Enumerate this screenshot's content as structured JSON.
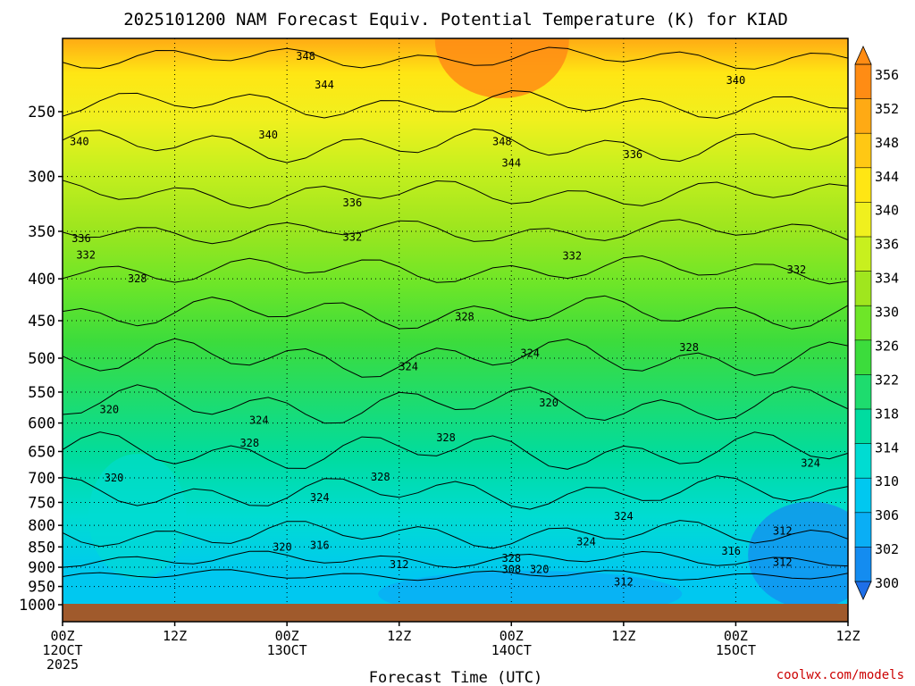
{
  "chart_data": {
    "type": "heatmap",
    "title": "2025101200 NAM Forecast Equiv. Potential Temperature (K) for KIAD",
    "xlabel": "Forecast Time (UTC)",
    "ylabel": "",
    "y_scale": "log-pressure",
    "ylim": [
      1000,
      200
    ],
    "yticks": [
      250,
      300,
      350,
      400,
      450,
      500,
      550,
      600,
      650,
      700,
      750,
      800,
      850,
      900,
      950,
      1000
    ],
    "xticks": [
      {
        "hour": 0,
        "line1": "00Z",
        "line2": "12OCT",
        "line3": "2025"
      },
      {
        "hour": 12,
        "line1": "12Z",
        "line2": "",
        "line3": ""
      },
      {
        "hour": 24,
        "line1": "00Z",
        "line2": "13OCT",
        "line3": ""
      },
      {
        "hour": 36,
        "line1": "12Z",
        "line2": "",
        "line3": ""
      },
      {
        "hour": 48,
        "line1": "00Z",
        "line2": "14OCT",
        "line3": ""
      },
      {
        "hour": 60,
        "line1": "12Z",
        "line2": "",
        "line3": ""
      },
      {
        "hour": 72,
        "line1": "00Z",
        "line2": "15OCT",
        "line3": ""
      },
      {
        "hour": 84,
        "line1": "12Z",
        "line2": "",
        "line3": ""
      }
    ],
    "xlim": [
      0,
      84
    ],
    "colorbar": {
      "labels": [
        300,
        302,
        306,
        310,
        314,
        318,
        322,
        326,
        330,
        334,
        336,
        340,
        344,
        348,
        352,
        356
      ],
      "colors": [
        "#1e6fe8",
        "#148cf0",
        "#0aaef5",
        "#00c8f0",
        "#00dcd2",
        "#00dca0",
        "#1edc6e",
        "#3cdc3c",
        "#6ee628",
        "#a0e61e",
        "#c8f01e",
        "#f0f01e",
        "#ffe614",
        "#ffc814",
        "#ffaa14",
        "#ff8c14"
      ],
      "extend": "both"
    },
    "contour_labels": [
      {
        "t": 1.8,
        "p": 272,
        "v": "340"
      },
      {
        "t": 26.0,
        "p": 214,
        "v": "348"
      },
      {
        "t": 28.0,
        "p": 232,
        "v": "344"
      },
      {
        "t": 22.0,
        "p": 267,
        "v": "340"
      },
      {
        "t": 47.0,
        "p": 272,
        "v": "348"
      },
      {
        "t": 48.0,
        "p": 289,
        "v": "344"
      },
      {
        "t": 72.0,
        "p": 229,
        "v": "340"
      },
      {
        "t": 61.0,
        "p": 282,
        "v": "336"
      },
      {
        "t": 31.0,
        "p": 323,
        "v": "336"
      },
      {
        "t": 31.0,
        "p": 356,
        "v": "332"
      },
      {
        "t": 2.0,
        "p": 357,
        "v": "336"
      },
      {
        "t": 2.5,
        "p": 374,
        "v": "332"
      },
      {
        "t": 8.0,
        "p": 400,
        "v": "328"
      },
      {
        "t": 54.5,
        "p": 375,
        "v": "332"
      },
      {
        "t": 78.5,
        "p": 390,
        "v": "332"
      },
      {
        "t": 43.0,
        "p": 445,
        "v": "328"
      },
      {
        "t": 67.0,
        "p": 485,
        "v": "328"
      },
      {
        "t": 37.0,
        "p": 512,
        "v": "324"
      },
      {
        "t": 50.0,
        "p": 493,
        "v": "324"
      },
      {
        "t": 5.0,
        "p": 578,
        "v": "320"
      },
      {
        "t": 52.0,
        "p": 567,
        "v": "320"
      },
      {
        "t": 21.0,
        "p": 595,
        "v": "324"
      },
      {
        "t": 20.0,
        "p": 635,
        "v": "328"
      },
      {
        "t": 41.0,
        "p": 625,
        "v": "328"
      },
      {
        "t": 34.0,
        "p": 698,
        "v": "328"
      },
      {
        "t": 5.5,
        "p": 700,
        "v": "320"
      },
      {
        "t": 27.5,
        "p": 740,
        "v": "324"
      },
      {
        "t": 60.0,
        "p": 780,
        "v": "324"
      },
      {
        "t": 56.0,
        "p": 838,
        "v": "324"
      },
      {
        "t": 80.0,
        "p": 672,
        "v": "324"
      },
      {
        "t": 23.5,
        "p": 850,
        "v": "320"
      },
      {
        "t": 27.5,
        "p": 846,
        "v": "316"
      },
      {
        "t": 71.5,
        "p": 860,
        "v": "316"
      },
      {
        "t": 36.0,
        "p": 893,
        "v": "312"
      },
      {
        "t": 48.0,
        "p": 878,
        "v": "328"
      },
      {
        "t": 48.0,
        "p": 905,
        "v": "308"
      },
      {
        "t": 51.0,
        "p": 905,
        "v": "320"
      },
      {
        "t": 60.0,
        "p": 938,
        "v": "312"
      },
      {
        "t": 77.0,
        "p": 813,
        "v": "312"
      },
      {
        "t": 77.0,
        "p": 887,
        "v": "312"
      }
    ]
  },
  "credit": "coolwx.com/models",
  "colors": {
    "ground": "#a05a2c",
    "frame": "#000000",
    "contour": "#000000"
  }
}
